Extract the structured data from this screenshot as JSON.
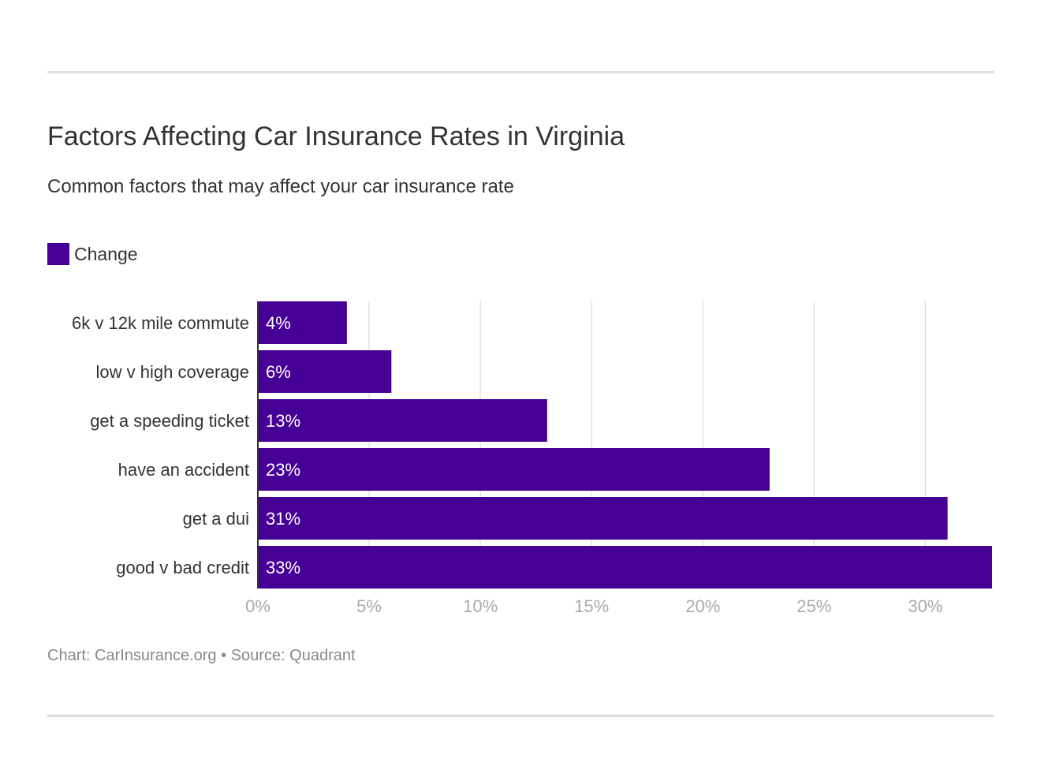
{
  "title": "Factors Affecting Car Insurance Rates in Virginia",
  "subtitle": "Common factors that may affect your car insurance rate",
  "footer": {
    "credit": "Chart: CarInsurance.org",
    "separator": "•",
    "source": "Source: Quadrant"
  },
  "colors": {
    "bar": "#470096",
    "grid": "#e2e2e2",
    "axis": "#333333",
    "tick_text": "#aaaaaa",
    "value_text": "#ffffff",
    "divider": "#dddddd"
  },
  "chart_data": {
    "type": "bar",
    "orientation": "horizontal",
    "categories": [
      "6k v 12k mile commute",
      "low v high coverage",
      "get a speeding ticket",
      "have an accident",
      "get a dui",
      "good v bad credit"
    ],
    "series": [
      {
        "name": "Change",
        "values": [
          4,
          6,
          13,
          23,
          31,
          33
        ],
        "labels": [
          "4%",
          "6%",
          "13%",
          "23%",
          "31%",
          "33%"
        ]
      }
    ],
    "xlim": [
      0,
      33
    ],
    "xticks": [
      0,
      5,
      10,
      15,
      20,
      25,
      30
    ],
    "xtick_labels": [
      "0%",
      "5%",
      "10%",
      "15%",
      "20%",
      "25%",
      "30%"
    ],
    "grid": true,
    "legend_position": "top-left"
  }
}
